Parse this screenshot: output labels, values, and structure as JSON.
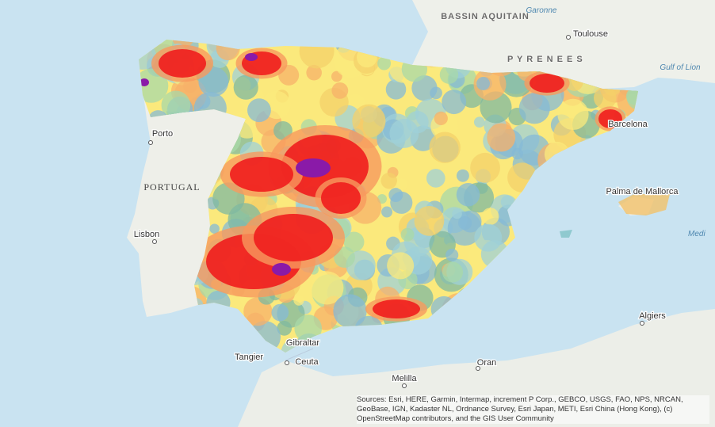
{
  "places": [
    {
      "name": "BASSIN AQUITAIN"
    },
    {
      "name": "Garonne"
    },
    {
      "name": "Toulouse"
    },
    {
      "name": "P Y R E N E E S"
    },
    {
      "name": "Gulf of Lion"
    },
    {
      "name": "Porto"
    },
    {
      "name": "PORTUGAL"
    },
    {
      "name": "Lisbon"
    },
    {
      "name": "Barcelona"
    },
    {
      "name": "Palma de Mallorca"
    },
    {
      "name": "Medi"
    },
    {
      "name": "Algiers"
    },
    {
      "name": "Tangier"
    },
    {
      "name": "Ceuta"
    },
    {
      "name": "Gibraltar"
    },
    {
      "name": "Melilla"
    },
    {
      "name": "Oran"
    }
  ],
  "attribution": "Sources: Esri, HERE, Garmin, Intermap, increment P Corp., GEBCO, USGS, FAO, NPS, NRCAN, GeoBase, IGN, Kadaster NL, Ordnance Survey, Esri Japan, METI, Esri China (Hong Kong), (c) OpenStreetMap contributors, and the GIS User Community"
}
